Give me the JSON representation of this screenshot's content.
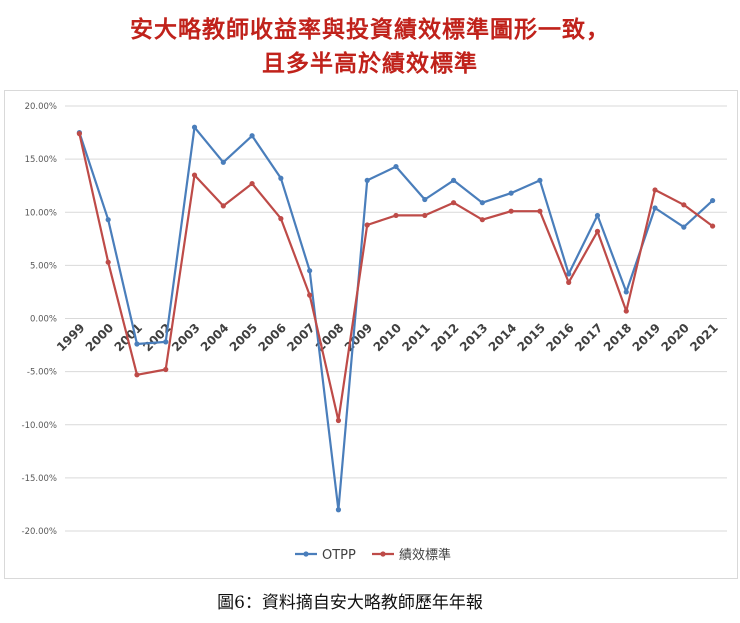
{
  "title_lines": [
    "安大略教師收益率與投資績效標準圖形一致，",
    "且多半高於績效標準"
  ],
  "caption": "圖6：資料摘自安大略教師歷年年報",
  "chart_data": {
    "type": "line",
    "title": "",
    "xlabel": "",
    "ylabel": "",
    "categories": [
      "1999",
      "2000",
      "2001",
      "2002",
      "2003",
      "2004",
      "2005",
      "2006",
      "2007",
      "2008",
      "2009",
      "2010",
      "2011",
      "2012",
      "2013",
      "2014",
      "2015",
      "2016",
      "2017",
      "2018",
      "2019",
      "2020",
      "2021"
    ],
    "y_ticks": [
      "20.00%",
      "15.00%",
      "10.00%",
      "5.00%",
      "0.00%",
      "-5.00%",
      "-10.00%",
      "-15.00%",
      "-20.00%"
    ],
    "ylim": [
      -20,
      20
    ],
    "grid": true,
    "legend_position": "bottom",
    "series": [
      {
        "name": "OTPP",
        "color": "#4a7ebb",
        "values": [
          17.5,
          9.3,
          -2.4,
          -2.2,
          18.0,
          14.7,
          17.2,
          13.2,
          4.5,
          -18.0,
          13.0,
          14.3,
          11.2,
          13.0,
          10.9,
          11.8,
          13.0,
          4.2,
          9.7,
          2.5,
          10.4,
          8.6,
          11.1
        ]
      },
      {
        "name": "績效標準",
        "color": "#be4b48",
        "values": [
          17.4,
          5.3,
          -5.3,
          -4.8,
          13.5,
          10.6,
          12.7,
          9.4,
          2.2,
          -9.6,
          8.8,
          9.7,
          9.7,
          10.9,
          9.3,
          10.1,
          10.1,
          3.4,
          8.2,
          0.7,
          12.1,
          10.7,
          8.7
        ]
      }
    ]
  }
}
